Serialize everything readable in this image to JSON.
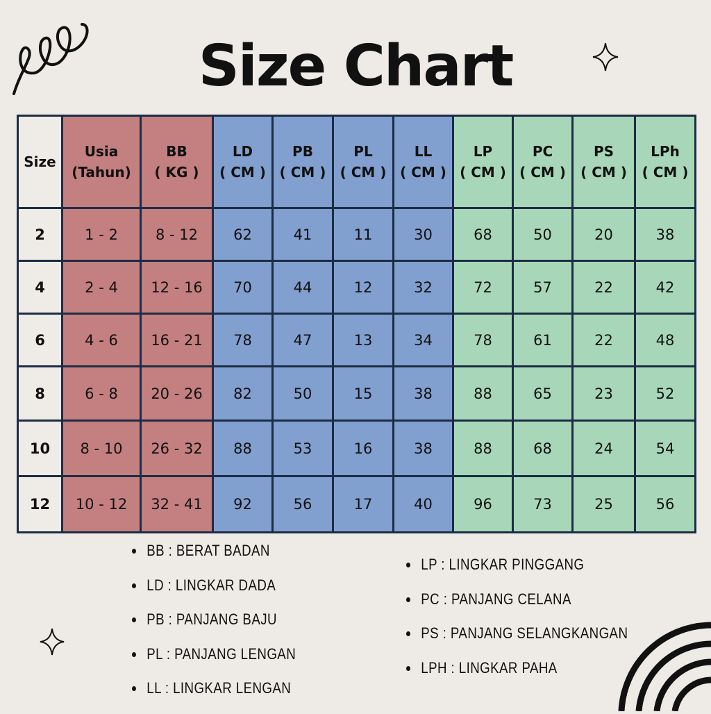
{
  "title": "Size Chart",
  "colors": {
    "background": "#eeeae6",
    "size_col": "#efebe7",
    "red_group": "#c47f80",
    "blue_group": "#819fcf",
    "green_group": "#a7d7b8",
    "border": "#1b2d45"
  },
  "headers": [
    {
      "l1": "Size",
      "l2": ""
    },
    {
      "l1": "Usia",
      "l2": "(Tahun)"
    },
    {
      "l1": "BB",
      "l2": "( KG )"
    },
    {
      "l1": "LD",
      "l2": "( CM )"
    },
    {
      "l1": "PB",
      "l2": "( CM )"
    },
    {
      "l1": "PL",
      "l2": "( CM )"
    },
    {
      "l1": "LL",
      "l2": "( CM )"
    },
    {
      "l1": "LP",
      "l2": "( CM )"
    },
    {
      "l1": "PC",
      "l2": "( CM )"
    },
    {
      "l1": "PS",
      "l2": "( CM )"
    },
    {
      "l1": "LPh",
      "l2": "( CM )"
    }
  ],
  "rows": [
    [
      "2",
      "1 - 2",
      "8 - 12",
      "62",
      "41",
      "11",
      "30",
      "68",
      "50",
      "20",
      "38"
    ],
    [
      "4",
      "2 - 4",
      "12 - 16",
      "70",
      "44",
      "12",
      "32",
      "72",
      "57",
      "22",
      "42"
    ],
    [
      "6",
      "4 - 6",
      "16 - 21",
      "78",
      "47",
      "13",
      "34",
      "78",
      "61",
      "22",
      "48"
    ],
    [
      "8",
      "6 - 8",
      "20 - 26",
      "82",
      "50",
      "15",
      "38",
      "88",
      "65",
      "23",
      "52"
    ],
    [
      "10",
      "8 - 10",
      "26 - 32",
      "88",
      "53",
      "16",
      "38",
      "88",
      "68",
      "24",
      "54"
    ],
    [
      "12",
      "10 - 12",
      "32 - 41",
      "92",
      "56",
      "17",
      "40",
      "96",
      "73",
      "25",
      "56"
    ]
  ],
  "legend_left": [
    "BB : BERAT BADAN",
    "LD : LINGKAR DADA",
    "PB : PANJANG BAJU",
    "PL : PANJANG LENGAN",
    "LL : LINGKAR LENGAN"
  ],
  "legend_right": [
    "LP : LINGKAR PINGGANG",
    "PC : PANJANG CELANA",
    "PS : PANJANG SELANGKANGAN",
    "LPH : LINGKAR PAHA"
  ],
  "decor_icons": [
    "loop-scribble-icon",
    "sparkle-icon",
    "sparkle-icon",
    "rainbow-arcs-icon"
  ]
}
